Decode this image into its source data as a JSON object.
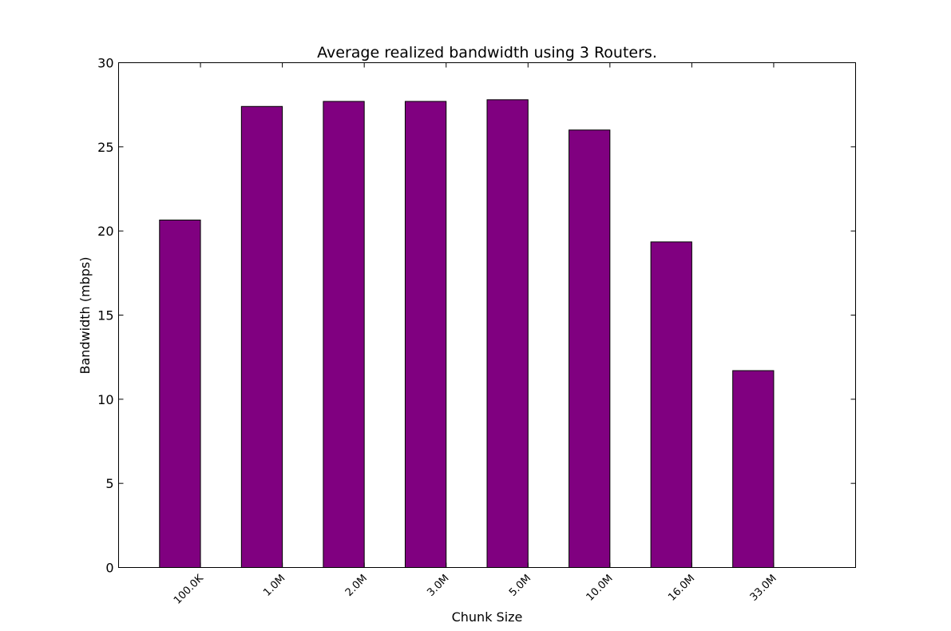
{
  "chart_data": {
    "type": "bar",
    "title": "Average realized bandwidth using 3 Routers.",
    "xlabel": "Chunk Size",
    "ylabel": "Bandwidth (mbps)",
    "categories": [
      "100.0K",
      "1.0M",
      "2.0M",
      "3.0M",
      "5.0M",
      "10.0M",
      "16.0M",
      "33.0M"
    ],
    "values": [
      20.65,
      27.4,
      27.7,
      27.7,
      27.8,
      26.0,
      19.35,
      11.7
    ],
    "ylim": [
      0,
      30
    ],
    "yticks": [
      "0",
      "5",
      "10",
      "15",
      "20",
      "25",
      "30"
    ],
    "bar_color": "#800080",
    "grid": false
  }
}
